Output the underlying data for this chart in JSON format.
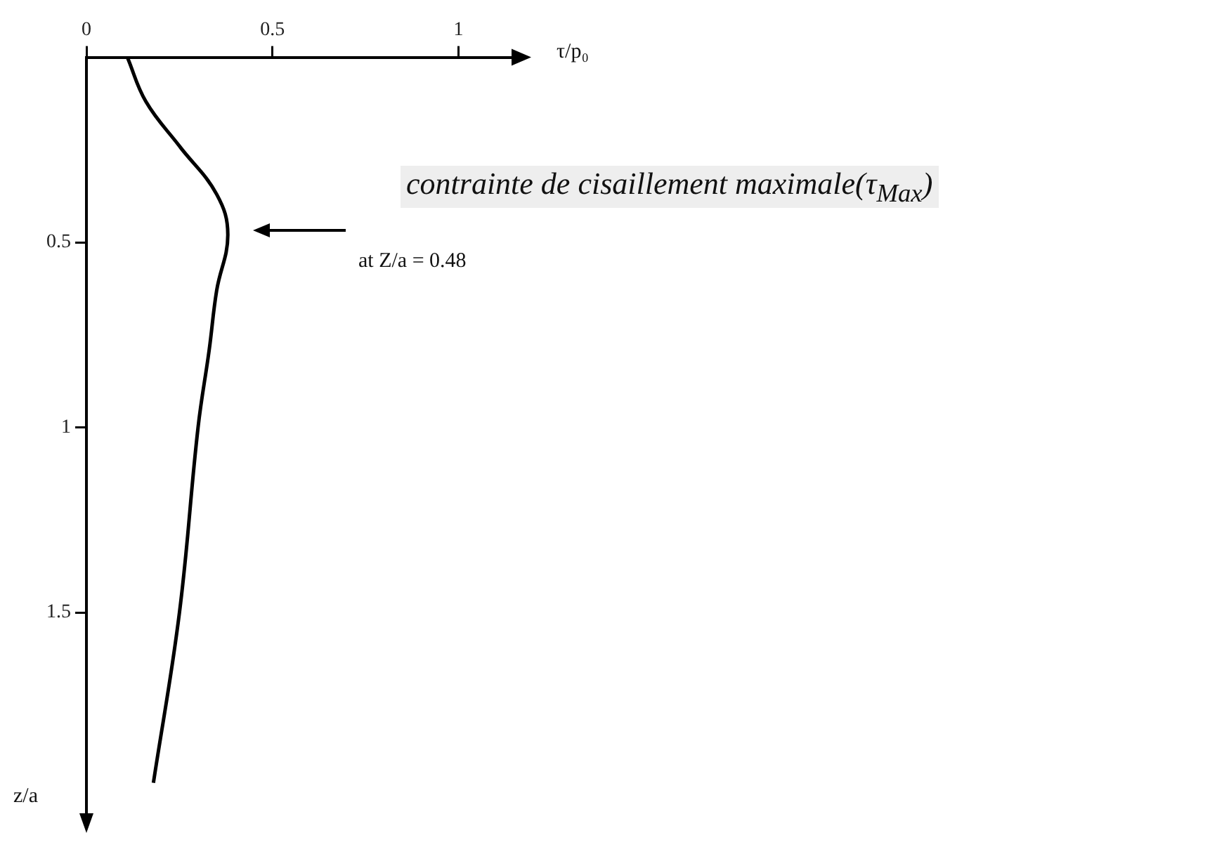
{
  "chart_data": {
    "type": "line",
    "xlabel": "τ/p₀",
    "ylabel": "z/a",
    "x": [
      0.11,
      0.16,
      0.25,
      0.35,
      0.38,
      0.35,
      0.33,
      0.3,
      0.25,
      0.18
    ],
    "values": [
      0,
      0.12,
      0.24,
      0.37,
      0.48,
      0.63,
      0.79,
      1,
      1.5,
      1.96
    ],
    "color": "#000000",
    "xlim": [
      0,
      1.15
    ],
    "xticks": [
      0,
      0.5,
      1
    ],
    "ylim": [
      2.05,
      0
    ],
    "yticks": [
      0.5,
      1,
      1.5
    ],
    "grid": false,
    "legend": false,
    "marker": "none",
    "line_style": "solid",
    "annotations": [
      "contrainte de cisaillement maximale(τ$_{Max}$)",
      "at Z/a = 0.48"
    ]
  }
}
